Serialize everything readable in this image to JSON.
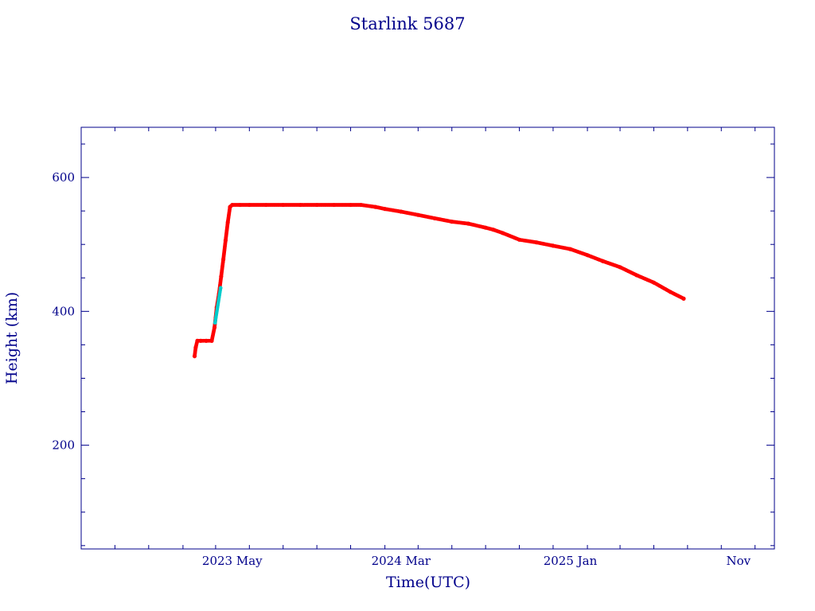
{
  "chart_data": {
    "type": "scatter",
    "title": "Starlink 5687",
    "xlabel": "Time(UTC)",
    "ylabel": "Height (km)",
    "xlim": [
      "2022-08-01",
      "2026-01-05"
    ],
    "ylim": [
      45,
      675
    ],
    "x_ticks": [
      {
        "date": "2023-05-01",
        "label": "2023 May"
      },
      {
        "date": "2024-03-01",
        "label": "2024 Mar"
      },
      {
        "date": "2025-01-01",
        "label": "2025 Jan"
      },
      {
        "date": "2025-11-01",
        "label": "Nov"
      }
    ],
    "y_ticks": [
      {
        "value": 200,
        "label": "200"
      },
      {
        "value": 400,
        "label": "400"
      },
      {
        "value": 600,
        "label": "600"
      }
    ],
    "grid": false,
    "colors": {
      "axis": "#00008b",
      "main_series": "#ff0000",
      "secondary_series": "#00cccc"
    },
    "series": [
      {
        "color": "#ff0000",
        "x": [
          "2023-02-22",
          "2023-02-24",
          "2023-02-27",
          "2023-03-05",
          "2023-03-15",
          "2023-03-25",
          "2023-03-30",
          "2023-04-03",
          "2023-04-07",
          "2023-04-11",
          "2023-04-15",
          "2023-04-19",
          "2023-04-23",
          "2023-04-27",
          "2023-05-01",
          "2023-05-15",
          "2023-06-01",
          "2023-07-01",
          "2023-08-01",
          "2023-09-01",
          "2023-10-01",
          "2023-11-01",
          "2023-12-01",
          "2023-12-20",
          "2024-01-15",
          "2024-02-01",
          "2024-03-01",
          "2024-04-01",
          "2024-05-01",
          "2024-06-01",
          "2024-07-01",
          "2024-08-01",
          "2024-08-15",
          "2024-09-01",
          "2024-10-01",
          "2024-11-01",
          "2024-12-01",
          "2025-01-01",
          "2025-02-01",
          "2025-03-01",
          "2025-04-01",
          "2025-05-01",
          "2025-06-01",
          "2025-07-01",
          "2025-07-25"
        ],
        "y": [
          333,
          346,
          356,
          356,
          356,
          356,
          376,
          406,
          426,
          452,
          478,
          506,
          533,
          556,
          559,
          559,
          559,
          559,
          559,
          559,
          559,
          559,
          559,
          559,
          556,
          553,
          549,
          544,
          539,
          534,
          531,
          525,
          522,
          517,
          507,
          503,
          498,
          493,
          484,
          475,
          466,
          454,
          443,
          429,
          419
        ]
      },
      {
        "color": "#00cccc",
        "x": [
          "2023-03-31",
          "2023-04-10"
        ],
        "y": [
          383,
          435
        ]
      }
    ]
  }
}
